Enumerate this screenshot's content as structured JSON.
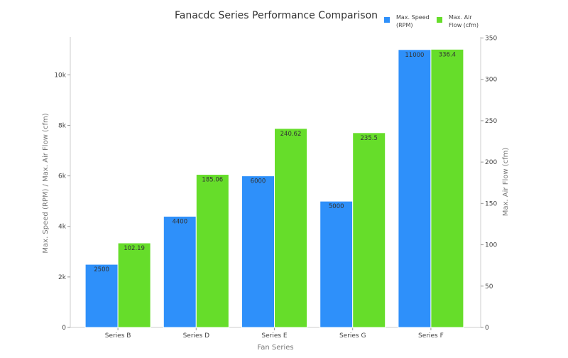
{
  "chart_data": {
    "type": "bar",
    "title": "Fanacdc Series Performance Comparison",
    "xlabel": "Fan Series",
    "ylabel": "Max. Speed (RPM) / Max. Air Flow (cfm)",
    "y2label": "Max. Air Flow (cfm)",
    "categories": [
      "Series B",
      "Series D",
      "Series E",
      "Series G",
      "Series F"
    ],
    "series": [
      {
        "name": "Max. Speed (RPM)",
        "axis": "left",
        "color": "#2e90fa",
        "values": [
          2500,
          4400,
          6000,
          5000,
          11000
        ],
        "labels": [
          "2500",
          "4400",
          "6000",
          "5000",
          "11000"
        ]
      },
      {
        "name": "Max. Air Flow (cfm)",
        "axis": "right",
        "color": "#66dd2a",
        "values": [
          102.19,
          185.06,
          240.62,
          235.5,
          336.4
        ],
        "labels": [
          "102.19",
          "185.06",
          "240.62",
          "235.5",
          "336.4"
        ]
      }
    ],
    "legend": {
      "position": "top-right",
      "entries": [
        "Max. Speed\n(RPM)",
        "Max. Air\nFlow (cfm)"
      ]
    },
    "ylim": [
      0,
      11500
    ],
    "y_ticks": [
      0,
      2000,
      4000,
      6000,
      8000,
      10000
    ],
    "y_tick_labels": [
      "0",
      "2k",
      "4k",
      "6k",
      "8k",
      "10k"
    ],
    "y2lim": [
      0,
      351.3
    ],
    "y2_ticks": [
      0,
      50,
      100,
      150,
      200,
      250,
      300,
      350
    ],
    "y2_tick_labels": [
      "0",
      "50",
      "100",
      "150",
      "200",
      "250",
      "300",
      "350"
    ],
    "grid": false
  }
}
